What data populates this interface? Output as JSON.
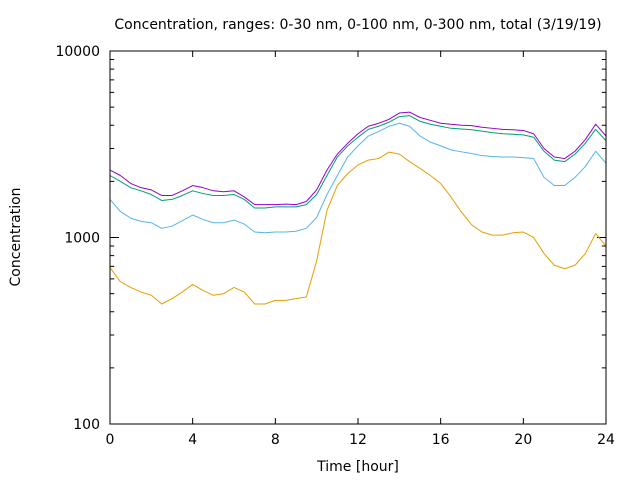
{
  "chart_data": {
    "type": "line",
    "title": "Concentration, ranges: 0-30 nm, 0-100 nm, 0-300 nm, total (3/19/19)",
    "xlabel": "Time [hour]",
    "ylabel": "Concentration",
    "xlim": [
      0,
      24
    ],
    "ylim": [
      100,
      10000
    ],
    "yscale": "log",
    "grid": false,
    "legend": "none",
    "x_ticks": [
      0,
      4,
      8,
      12,
      16,
      20,
      24
    ],
    "x_tick_labels": [
      "0",
      "4",
      "8",
      "12",
      "16",
      "20",
      "24"
    ],
    "y_ticks": [
      100,
      1000,
      10000
    ],
    "y_tick_labels": [
      "100",
      "1000",
      "10000"
    ],
    "x": [
      0,
      0.5,
      1,
      1.5,
      2,
      2.5,
      3,
      3.5,
      4,
      4.5,
      5,
      5.5,
      6,
      6.5,
      7,
      7.5,
      8,
      8.5,
      9,
      9.5,
      10,
      10.5,
      11,
      11.5,
      12,
      12.5,
      13,
      13.5,
      14,
      14.5,
      15,
      15.5,
      16,
      16.5,
      17,
      17.5,
      18,
      18.5,
      19,
      19.5,
      20,
      20.5,
      21,
      21.5,
      22,
      22.5,
      23,
      23.5,
      24
    ],
    "series": [
      {
        "color": "#e69f00",
        "values": [
          690,
          580,
          540,
          510,
          490,
          440,
          470,
          510,
          560,
          520,
          490,
          500,
          540,
          510,
          440,
          440,
          460,
          460,
          470,
          480,
          750,
          1400,
          1900,
          2200,
          2450,
          2600,
          2650,
          2870,
          2800,
          2550,
          2350,
          2150,
          1950,
          1650,
          1370,
          1170,
          1070,
          1030,
          1030,
          1060,
          1070,
          1000,
          820,
          710,
          680,
          710,
          820,
          1050,
          900
        ]
      },
      {
        "color": "#56b4e9",
        "values": [
          1600,
          1380,
          1270,
          1220,
          1200,
          1120,
          1150,
          1230,
          1320,
          1250,
          1200,
          1200,
          1240,
          1180,
          1070,
          1060,
          1070,
          1070,
          1080,
          1120,
          1280,
          1700,
          2150,
          2700,
          3100,
          3500,
          3700,
          3950,
          4100,
          3950,
          3500,
          3250,
          3100,
          2950,
          2880,
          2820,
          2750,
          2720,
          2700,
          2700,
          2680,
          2650,
          2100,
          1900,
          1900,
          2100,
          2400,
          2900,
          2500
        ]
      },
      {
        "color": "#009e73",
        "values": [
          2150,
          2000,
          1850,
          1780,
          1700,
          1580,
          1600,
          1680,
          1780,
          1720,
          1680,
          1680,
          1700,
          1600,
          1440,
          1440,
          1460,
          1460,
          1460,
          1500,
          1700,
          2150,
          2700,
          3100,
          3450,
          3800,
          3950,
          4150,
          4450,
          4500,
          4200,
          4050,
          3950,
          3850,
          3820,
          3780,
          3720,
          3650,
          3600,
          3580,
          3550,
          3450,
          2900,
          2600,
          2550,
          2800,
          3200,
          3800,
          3300
        ]
      },
      {
        "color": "#9400d3",
        "values": [
          2300,
          2150,
          1950,
          1850,
          1800,
          1680,
          1680,
          1780,
          1900,
          1850,
          1780,
          1760,
          1780,
          1650,
          1500,
          1500,
          1500,
          1510,
          1500,
          1560,
          1800,
          2300,
          2800,
          3200,
          3600,
          3950,
          4100,
          4300,
          4650,
          4700,
          4400,
          4250,
          4100,
          4050,
          4000,
          3980,
          3900,
          3850,
          3800,
          3780,
          3750,
          3600,
          3000,
          2700,
          2650,
          2900,
          3350,
          4050,
          3500
        ]
      }
    ]
  }
}
